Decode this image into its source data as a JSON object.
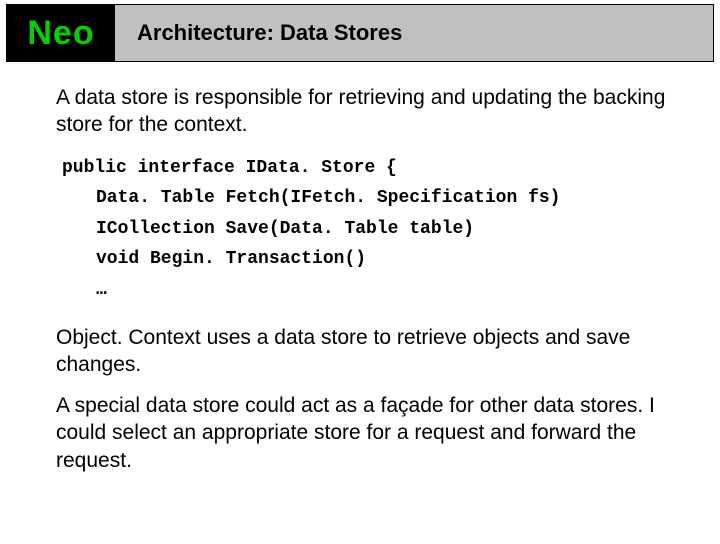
{
  "header": {
    "logo": "Neo",
    "title": "Architecture: Data Stores"
  },
  "paragraphs": {
    "p1": "A data store is responsible for retrieving and updating the backing store for the context.",
    "p2": "Object. Context uses a data store to retrieve objects and save changes.",
    "p3": "A special data store could act as a façade for other data stores. I could select an appropriate store for a request and forward the request."
  },
  "code": {
    "line0": "public interface IData. Store {",
    "line1": "Data. Table Fetch(IFetch. Specification fs)",
    "line2": "ICollection Save(Data. Table table)",
    "line3": "void Begin. Transaction()",
    "line4": "…"
  },
  "styling": {
    "logo_bg": "#000000",
    "logo_color": "#00d000",
    "title_bg": "#c0c0c0",
    "page_bg": "#ffffff",
    "text_color": "#000000",
    "body_font": "Verdana",
    "code_font": "Courier New",
    "title_fontsize": 22,
    "body_fontsize": 21,
    "code_fontsize": 18,
    "logo_fontsize": 34
  }
}
